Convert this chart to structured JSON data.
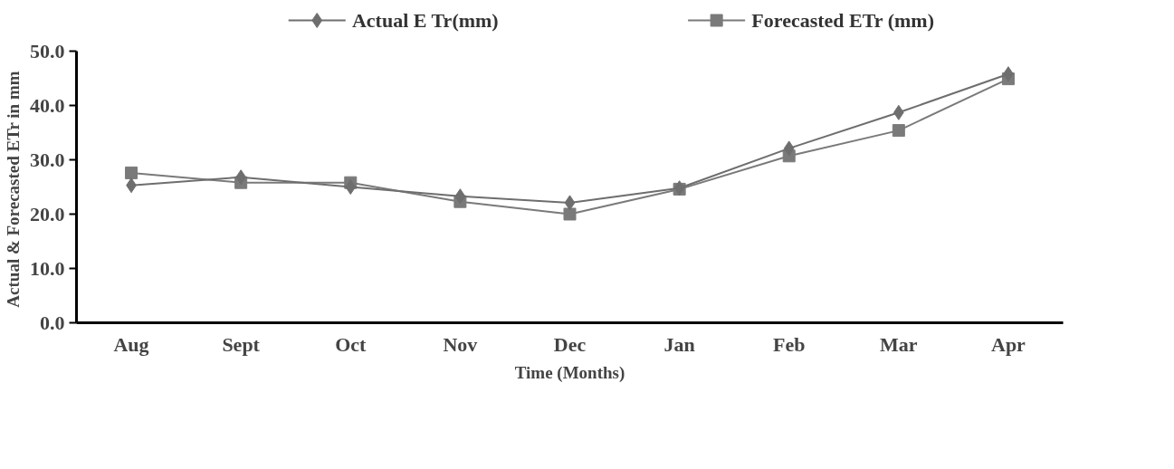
{
  "chart_data": {
    "type": "line",
    "xlabel": "Time (Months)",
    "ylabel": "Actual & Forecasted  ETr in mm",
    "categories": [
      "Aug",
      "Sept",
      "Oct",
      "Nov",
      "Dec",
      "Jan",
      "Feb",
      "Mar",
      "Apr"
    ],
    "series": [
      {
        "name": "Actual E Tr(mm)",
        "color": "#6e6e6e",
        "marker": "diamond",
        "values": [
          25.3,
          26.8,
          25.0,
          23.3,
          22.1,
          24.8,
          32.1,
          38.7,
          45.8
        ]
      },
      {
        "name": "Forecasted  ETr (mm)",
        "color": "#7a7a7a",
        "marker": "square",
        "values": [
          27.6,
          25.8,
          25.8,
          22.3,
          20.0,
          24.6,
          30.7,
          35.4,
          44.9
        ]
      }
    ],
    "ylim": [
      0,
      50
    ],
    "yticks": [
      {
        "value": 0,
        "label": "0.0"
      },
      {
        "value": 10,
        "label": "10.0"
      },
      {
        "value": 20,
        "label": "20.0"
      },
      {
        "value": 30,
        "label": "30.0"
      },
      {
        "value": 40,
        "label": "40.0"
      },
      {
        "value": 50,
        "label": "50.0"
      }
    ],
    "grid": false,
    "legend": "top",
    "line_style": "solid"
  }
}
